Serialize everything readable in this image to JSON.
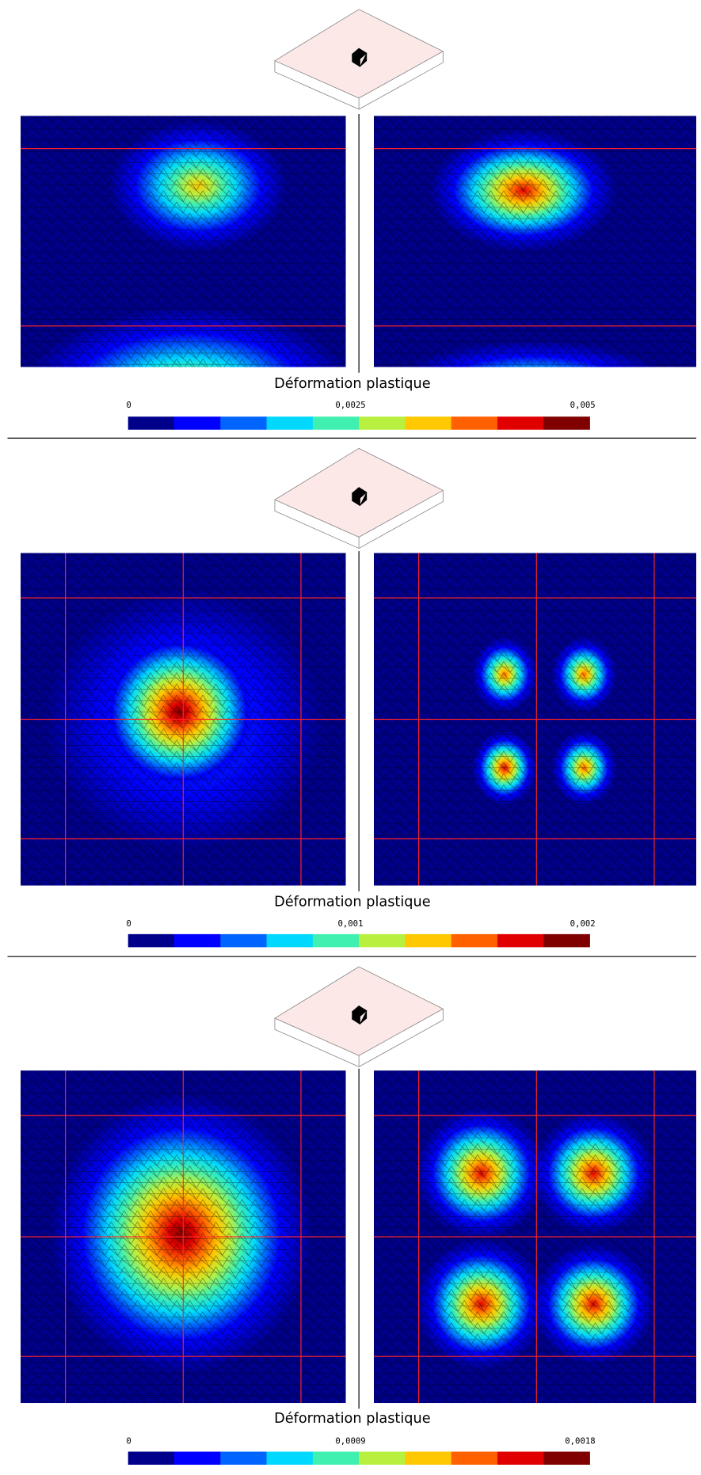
{
  "panels": [
    {
      "title": "Déformation plastique",
      "colorbar_labels": [
        "0",
        "0,0025",
        "0,005"
      ]
    },
    {
      "title": "Déformation plastique",
      "colorbar_labels": [
        "0",
        "0,001",
        "0,002"
      ]
    },
    {
      "title": "Déformation plastique",
      "colorbar_labels": [
        "0",
        "0,0009",
        "0,0018"
      ]
    }
  ],
  "colorbar_colors": [
    "#00008b",
    "#0000ff",
    "#0064ff",
    "#00d8ff",
    "#40f0b0",
    "#b8f040",
    "#ffc800",
    "#ff6000",
    "#e00000",
    "#800000"
  ]
}
